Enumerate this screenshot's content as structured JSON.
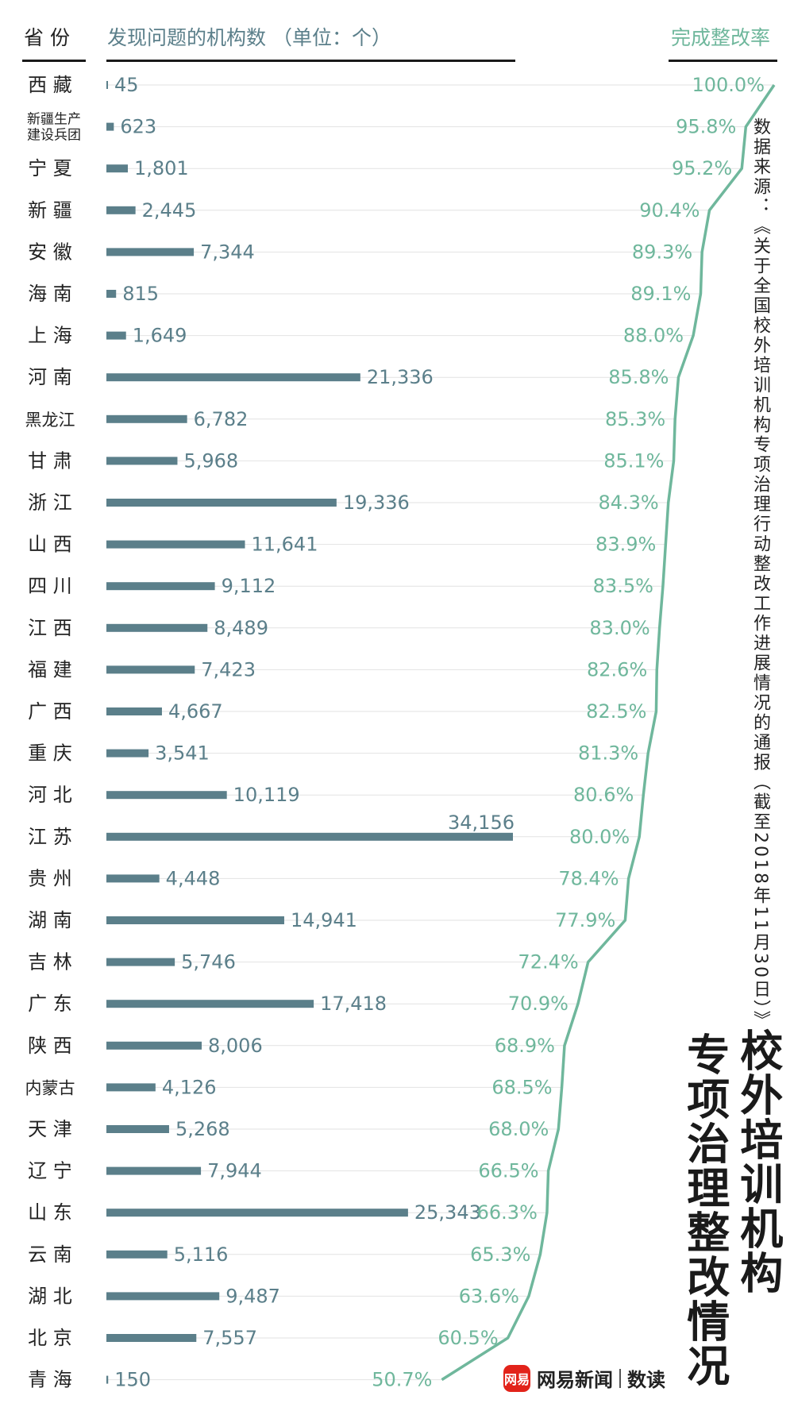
{
  "header": {
    "province_label": "省 份",
    "count_label": "发现问题的机构数 （单位：个）",
    "rate_label": "完成整改率"
  },
  "source_note": "数据来源：《关于全国校外培训机构专项治理行动整改工作进展情况的通报（截至2018年11月30日）》",
  "title_line1": "校外培训机构",
  "title_line2": "专项治理整改情况",
  "logo": {
    "badge": "网易",
    "name": "网易新闻",
    "section": "数读"
  },
  "colors": {
    "bar": "#5b7f8a",
    "rate": "#6fb79c",
    "text": "#222222",
    "grid": "#e2e2e2"
  },
  "chart_data": {
    "type": "bar",
    "orientation": "horizontal",
    "categories": [
      "西 藏",
      "新疆生产建设兵团",
      "宁 夏",
      "新 疆",
      "安 徽",
      "海 南",
      "上 海",
      "河 南",
      "黑龙江",
      "甘 肃",
      "浙 江",
      "山 西",
      "四 川",
      "江 西",
      "福 建",
      "广 西",
      "重 庆",
      "河 北",
      "江 苏",
      "贵 州",
      "湖 南",
      "吉 林",
      "广 东",
      "陕 西",
      "内蒙古",
      "天 津",
      "辽 宁",
      "山 东",
      "云 南",
      "湖 北",
      "北 京",
      "青 海"
    ],
    "series": [
      {
        "values": [
          45,
          623,
          1801,
          2445,
          7344,
          815,
          1649,
          21336,
          6782,
          5968,
          19336,
          11641,
          9112,
          8489,
          7423,
          4667,
          3541,
          10119,
          34156,
          4448,
          14941,
          5746,
          17418,
          8006,
          4126,
          5268,
          7944,
          25343,
          5116,
          9487,
          7557,
          150
        ],
        "labels": [
          "45",
          "623",
          "1,801",
          "2,445",
          "7,344",
          "815",
          "1,649",
          "21,336",
          "6,782",
          "5,968",
          "19,336",
          "11,641",
          "9,112",
          "8,489",
          "7,423",
          "4,667",
          "3,541",
          "10,119",
          "34,156",
          "4,448",
          "14,941",
          "5,746",
          "17,418",
          "8,006",
          "4,126",
          "5,268",
          "7,944",
          "25,343",
          "5,116",
          "9,487",
          "7,557",
          "150"
        ]
      },
      {
        "type": "line",
        "values": [
          100.0,
          95.8,
          95.2,
          90.4,
          89.3,
          89.1,
          88.0,
          85.8,
          85.3,
          85.1,
          84.3,
          83.9,
          83.5,
          83.0,
          82.6,
          82.5,
          81.3,
          80.6,
          80.0,
          78.4,
          77.9,
          72.4,
          70.9,
          68.9,
          68.5,
          68.0,
          66.5,
          66.3,
          65.3,
          63.6,
          60.5,
          50.7
        ],
        "labels": [
          "100.0%",
          "95.8%",
          "95.2%",
          "90.4%",
          "89.3%",
          "89.1%",
          "88.0%",
          "85.8%",
          "85.3%",
          "85.1%",
          "84.3%",
          "83.9%",
          "83.5%",
          "83.0%",
          "82.6%",
          "82.5%",
          "81.3%",
          "80.6%",
          "80.0%",
          "78.4%",
          "77.9%",
          "72.4%",
          "70.9%",
          "68.9%",
          "68.5%",
          "68.0%",
          "66.5%",
          "66.3%",
          "65.3%",
          "63.6%",
          "60.5%",
          "50.7%"
        ]
      }
    ],
    "title": "校外培训机构专项治理整改情况",
    "grid": true
  }
}
